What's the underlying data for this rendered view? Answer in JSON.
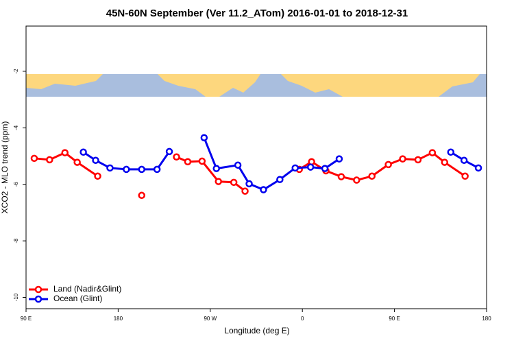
{
  "chart_data": {
    "type": "line",
    "title": "45N-60N September (Ver 11.2_ATom)   2016-01-01 to 2018-12-31",
    "x_label": "Longitude (deg E)",
    "y_label": "XCO2 - MLO trend (ppm)",
    "xlim": [
      90,
      540
    ],
    "xticks": [
      {
        "value": 90,
        "label": "90 E"
      },
      180,
      {
        "value": 270,
        "label": "90 W"
      },
      {
        "value": 360,
        "label": "0"
      },
      {
        "value": 450,
        "label": "90 E"
      },
      {
        "value": 540,
        "label": "180"
      }
    ],
    "ylim": [
      -10.4,
      -0.4
    ],
    "yticks": [
      -10,
      -8,
      -6,
      -4,
      -2
    ],
    "legend": "bottom-left",
    "series": [
      {
        "name": "Land (Nadir&Glint)",
        "color": "#ff0000",
        "x": [
          98,
          113,
          128,
          140,
          160,
          null,
          203,
          null,
          237,
          248,
          262,
          278,
          293,
          304,
          null,
          357,
          369,
          383,
          398,
          413,
          428,
          444,
          458,
          473,
          487,
          499,
          519
        ],
        "values": [
          -5.08,
          -5.13,
          -4.88,
          -5.22,
          -5.71,
          null,
          -6.39,
          null,
          -5.03,
          -5.2,
          -5.18,
          -5.9,
          -5.93,
          -6.24,
          null,
          -5.47,
          -5.2,
          -5.52,
          -5.73,
          -5.85,
          -5.71,
          -5.3,
          -5.1,
          -5.13,
          -4.88,
          -5.22,
          -5.71
        ]
      },
      {
        "name": "Ocean (Glint)",
        "color": "#0000ee",
        "x": [
          146,
          158,
          172,
          188,
          203,
          218,
          230,
          null,
          264,
          276,
          297,
          308,
          322,
          338,
          353,
          368,
          382,
          396,
          null,
          505,
          518,
          532
        ],
        "values": [
          -4.86,
          -5.15,
          -5.42,
          -5.47,
          -5.47,
          -5.47,
          -4.84,
          null,
          -4.35,
          -5.44,
          -5.32,
          -5.98,
          -6.19,
          -5.83,
          -5.42,
          -5.39,
          -5.44,
          -5.1,
          null,
          -4.86,
          -5.15,
          -5.42
        ]
      }
    ]
  }
}
